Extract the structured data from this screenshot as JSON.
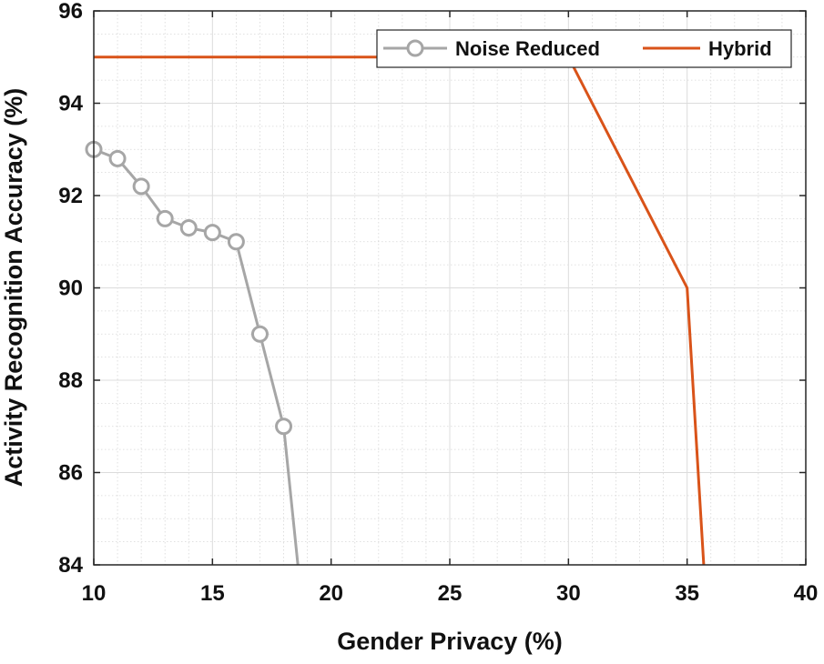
{
  "chart_data": {
    "type": "line",
    "title": "",
    "xlabel": "Gender Privacy (%)",
    "ylabel": "Activity Recognition Accuracy (%)",
    "xlim": [
      10,
      40
    ],
    "ylim": [
      84,
      96
    ],
    "xticks": [
      10,
      15,
      20,
      25,
      30,
      35,
      40
    ],
    "yticks": [
      84,
      86,
      88,
      90,
      92,
      94,
      96
    ],
    "grid": true,
    "minor_grid": true,
    "legend_position": "top-right",
    "series": [
      {
        "name": "Noise Reduced",
        "color": "#a6a6a6",
        "marker": "circle",
        "x": [
          10,
          11,
          12,
          13,
          14,
          15,
          16,
          17,
          18,
          18.6
        ],
        "y": [
          93,
          92.8,
          92.2,
          91.5,
          91.3,
          91.2,
          91,
          89,
          87,
          84
        ],
        "marked_points": 9
      },
      {
        "name": "Hybrid",
        "color": "#d95319",
        "marker": "none",
        "x": [
          10,
          30,
          35,
          35.7
        ],
        "y": [
          95,
          95,
          90,
          84
        ]
      }
    ]
  }
}
